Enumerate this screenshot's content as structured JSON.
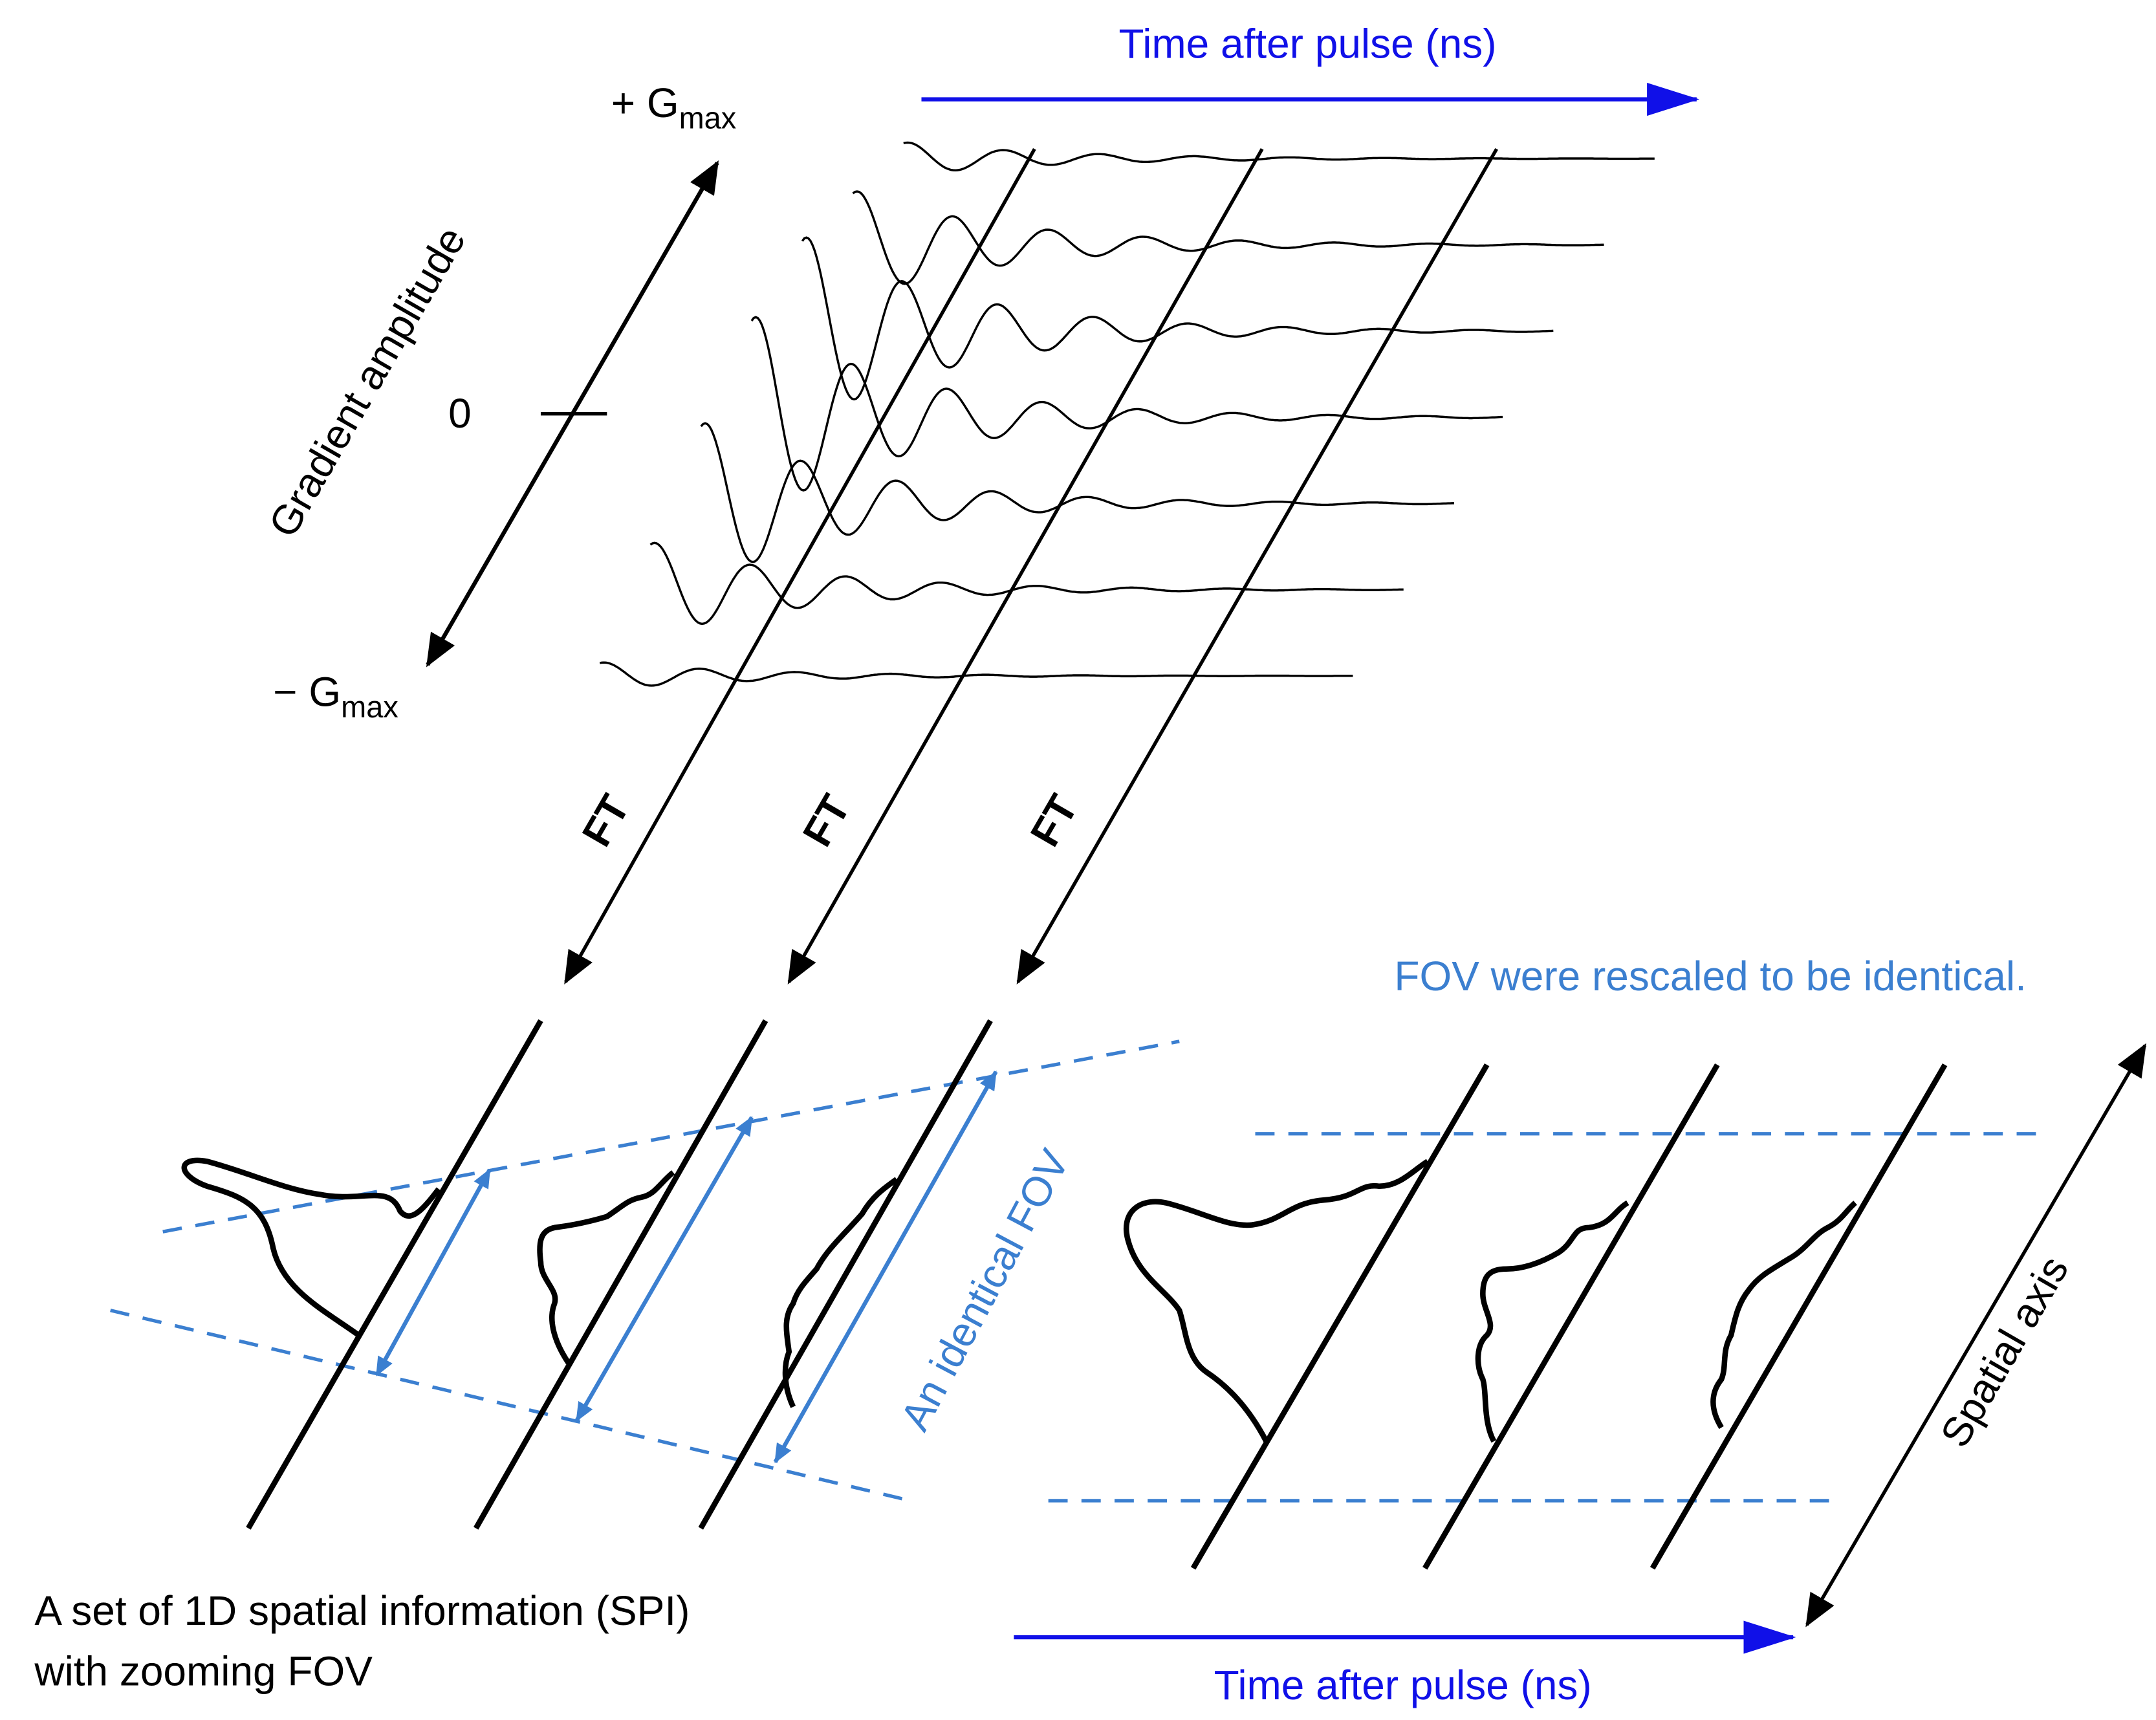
{
  "top_axis": {
    "label": "Time after pulse (ns)"
  },
  "gradient_axis": {
    "label": "Gradient amplitude",
    "max_label": {
      "prefix": "+ G",
      "subscript": "max"
    },
    "zero_label": "0",
    "min_label": {
      "prefix": "− G",
      "subscript": "max"
    }
  },
  "transforms": [
    "FT",
    "FT",
    "FT"
  ],
  "annotations": {
    "rescaled": "FOV were rescaled to be identical.",
    "identical_fov": "An identical FOV",
    "spatial_axis": "Spatial axis"
  },
  "caption": {
    "lines": [
      "A set of 1D spatial information (SPI)",
      "with zooming FOV"
    ]
  },
  "bottom_axis": {
    "label": "Time after pulse (ns)"
  }
}
